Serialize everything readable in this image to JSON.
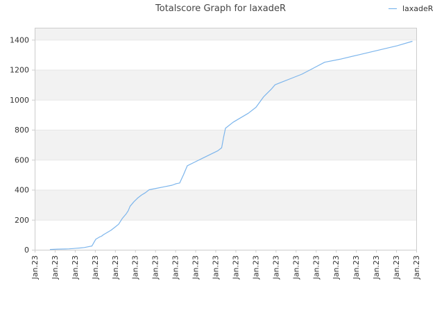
{
  "chart_data": {
    "type": "line",
    "title": "Totalscore Graph for laxadeR",
    "xlabel": "",
    "ylabel": "",
    "ylim": [
      0,
      1480
    ],
    "yticks": [
      0,
      200,
      400,
      600,
      800,
      1000,
      1200,
      1400
    ],
    "xtick_labels": [
      "Jan.23",
      "Jan.23",
      "Jan.23",
      "Jan.23",
      "Jan.23",
      "Jan.23",
      "Jan.23",
      "Jan.23",
      "Jan.23",
      "Jan.23",
      "Jan.23",
      "Jan.23",
      "Jan.23",
      "Jan.23",
      "Jan.23",
      "Jan.23",
      "Jan.23",
      "Jan.23",
      "Jan.23",
      "Jan.23"
    ],
    "grid": "horizontal bands",
    "legend_position": "top-right",
    "colors": {
      "line": "#7cb5ec",
      "band": "#f2f2f2",
      "axis": "#cccccc"
    },
    "series": [
      {
        "name": "laxadeR",
        "x": [
          0.04,
          0.06,
          0.08,
          0.09,
          0.1,
          0.11,
          0.12,
          0.13,
          0.14,
          0.15,
          0.16,
          0.17,
          0.175,
          0.18,
          0.19,
          0.2,
          0.21,
          0.22,
          0.23,
          0.24,
          0.245,
          0.25,
          0.26,
          0.27,
          0.28,
          0.29,
          0.3,
          0.32,
          0.34,
          0.36,
          0.37,
          0.38,
          0.39,
          0.4,
          0.42,
          0.44,
          0.46,
          0.48,
          0.49,
          0.495,
          0.5,
          0.52,
          0.54,
          0.56,
          0.58,
          0.6,
          0.62,
          0.63,
          0.65,
          0.67,
          0.7,
          0.73,
          0.76,
          0.8,
          0.85,
          0.9,
          0.95,
          0.99
        ],
        "y": [
          2,
          4,
          5,
          6,
          8,
          10,
          12,
          15,
          20,
          25,
          70,
          85,
          90,
          100,
          115,
          130,
          150,
          170,
          210,
          240,
          260,
          290,
          320,
          345,
          365,
          380,
          400,
          410,
          420,
          430,
          440,
          445,
          500,
          560,
          585,
          610,
          635,
          660,
          680,
          750,
          810,
          850,
          880,
          910,
          950,
          1020,
          1070,
          1100,
          1120,
          1140,
          1170,
          1210,
          1250,
          1270,
          1300,
          1330,
          1360,
          1390
        ]
      }
    ]
  }
}
